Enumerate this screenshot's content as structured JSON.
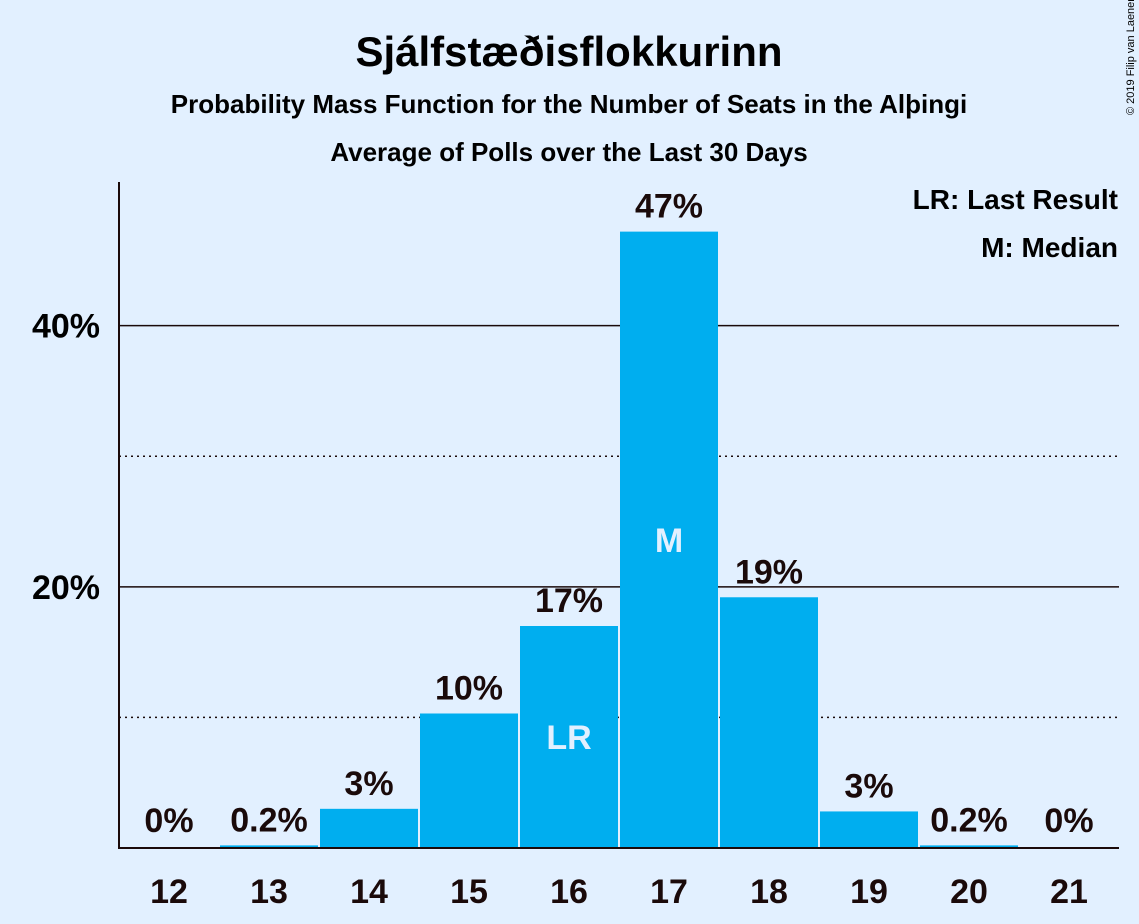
{
  "colors": {
    "background": "#e2f0ff",
    "bar": "#00aeef",
    "text": "#1a0a0a",
    "bar_label_inside": "#e2f0ff"
  },
  "chart_data": {
    "type": "bar",
    "title": "Sjálfstæðisflokkurinn",
    "subtitle": "Probability Mass Function for the Number of Seats in the Alþingi",
    "subtitle2": "Average of Polls over the Last 30 Days",
    "copyright": "© 2019 Filip van Laenen",
    "categories": [
      "12",
      "13",
      "14",
      "15",
      "16",
      "17",
      "18",
      "19",
      "20",
      "21"
    ],
    "values": [
      0,
      0.2,
      3,
      10.3,
      17,
      47.2,
      19.2,
      2.8,
      0.2,
      0
    ],
    "value_labels": [
      "0%",
      "0.2%",
      "3%",
      "10%",
      "17%",
      "47%",
      "19%",
      "3%",
      "0.2%",
      "0%"
    ],
    "ylim": [
      0,
      51
    ],
    "yticks": [
      {
        "value": 20,
        "label": "20%"
      },
      {
        "value": 40,
        "label": "40%"
      }
    ],
    "minor_gridlines": [
      10,
      30
    ],
    "major_gridlines": [
      20,
      40
    ],
    "markers": [
      {
        "category": "16",
        "label": "LR"
      },
      {
        "category": "17",
        "label": "M"
      }
    ],
    "legend": {
      "placement": "top-right",
      "entries": [
        "LR: Last Result",
        "M: Median"
      ]
    }
  }
}
